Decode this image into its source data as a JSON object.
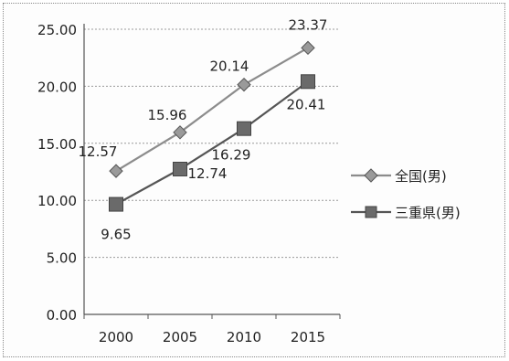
{
  "chart_data": {
    "type": "line",
    "categories": [
      "2000",
      "2005",
      "2010",
      "2015"
    ],
    "ylim": [
      0,
      25
    ],
    "yticks": [
      "0.00",
      "5.00",
      "10.00",
      "15.00",
      "20.00",
      "25.00"
    ],
    "grid": true,
    "legend_position": "right",
    "series": [
      {
        "name": "全国(男)",
        "marker": "diamond",
        "values": [
          12.57,
          15.96,
          20.14,
          23.37
        ],
        "labels": [
          "12.57",
          "15.96",
          "20.14",
          "23.37"
        ],
        "color": "#888888"
      },
      {
        "name": "三重県(男)",
        "marker": "square",
        "values": [
          9.65,
          12.74,
          16.29,
          20.41
        ],
        "labels": [
          "9.65",
          "12.74",
          "16.29",
          "20.41"
        ],
        "color": "#6a6a6a"
      }
    ]
  }
}
